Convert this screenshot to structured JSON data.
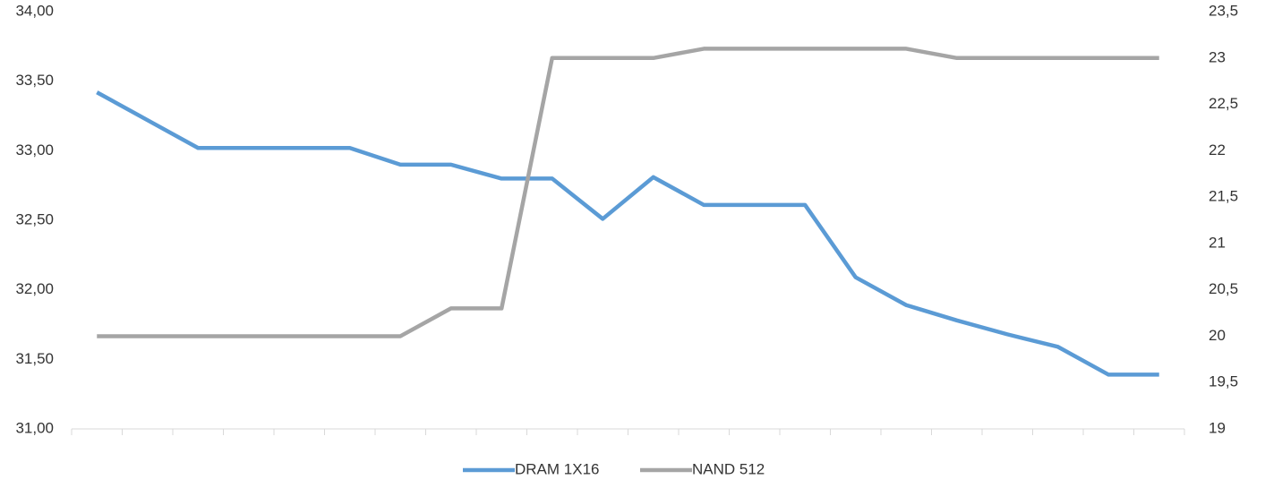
{
  "chart_data": {
    "type": "line",
    "categories": [
      null,
      null,
      null,
      null,
      null,
      null,
      null,
      null,
      null,
      null,
      null,
      null,
      null,
      null,
      null,
      null,
      null,
      null,
      null,
      null,
      null,
      null
    ],
    "series": [
      {
        "name": "DRAM 1X16",
        "color": "#5b9bd5",
        "values": [
          33.42,
          33.22,
          33.02,
          33.02,
          33.02,
          33.02,
          32.9,
          32.9,
          32.8,
          32.8,
          32.51,
          32.81,
          32.61,
          32.61,
          32.61,
          32.09,
          31.89,
          31.78,
          31.68,
          31.59,
          31.39,
          31.39
        ]
      },
      {
        "name": "NAND 512",
        "color": "#a5a5a5",
        "axis": "y2",
        "values": [
          20,
          20,
          20,
          20,
          20,
          20,
          20,
          20.3,
          20.3,
          23,
          23,
          23,
          23.1,
          23.1,
          23.1,
          23.1,
          23.1,
          23,
          23,
          23,
          23,
          23
        ]
      }
    ],
    "ylim": [
      31,
      34
    ],
    "yticks": [
      {
        "value": 31,
        "label": "31,00"
      },
      {
        "value": 31.5,
        "label": "31,50"
      },
      {
        "value": 32,
        "label": "32,00"
      },
      {
        "value": 32.5,
        "label": "32,50"
      },
      {
        "value": 33,
        "label": "33,00"
      },
      {
        "value": 33.5,
        "label": "33,50"
      },
      {
        "value": 34,
        "label": "34,00"
      }
    ],
    "y2lim": [
      19,
      23.5
    ],
    "y2ticks": [
      19,
      {
        "value": 19.5,
        "label": "19,5"
      },
      20,
      {
        "value": 20.5,
        "label": "20,5"
      },
      21,
      {
        "value": 21.5,
        "label": "21,5"
      },
      22,
      {
        "value": 22.5,
        "label": "22,5"
      },
      23,
      {
        "value": 23.5,
        "label": "23,5"
      }
    ],
    "legend": "bottom"
  }
}
